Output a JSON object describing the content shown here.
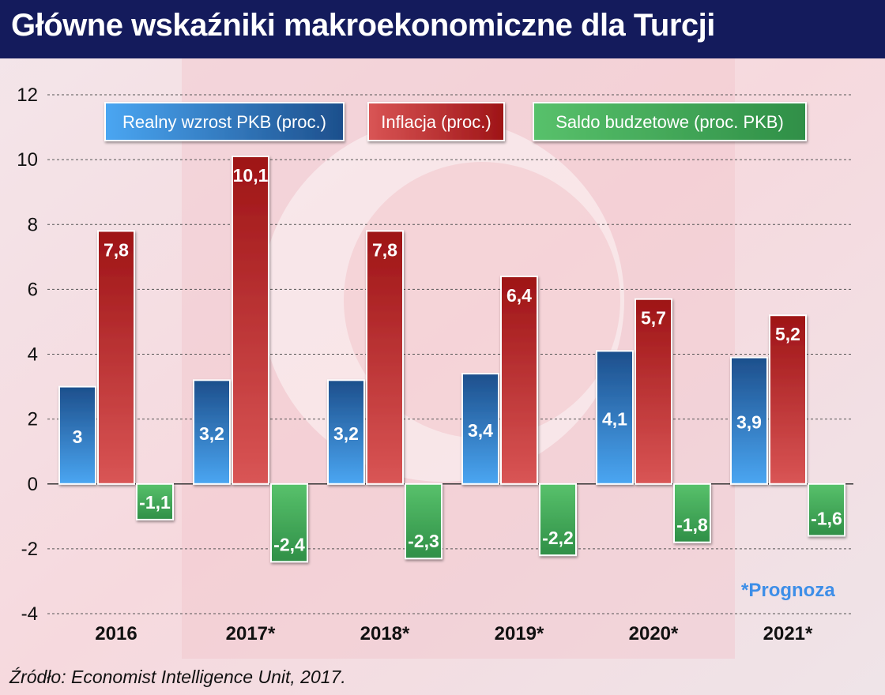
{
  "header": {
    "title": "Główne wskaźniki makroekonomiczne dla Turcji"
  },
  "footer": {
    "source": "Źródło: Economist Intelligence Unit, 2017."
  },
  "note": {
    "forecast": "*Prognoza"
  },
  "legend": [
    {
      "label": "Realny wzrost PKB (proc.)"
    },
    {
      "label": "Inflacja (proc.)"
    },
    {
      "label": "Saldo budzetowe (proc. PKB)"
    }
  ],
  "colors": {
    "header_bg": "#141b5c",
    "gdp": "#2f6db4",
    "inflation": "#b8252a",
    "budget": "#3aa655",
    "forecast_note": "#3d8ee8"
  },
  "chart_data": {
    "type": "bar",
    "categories": [
      "2016",
      "2017*",
      "2018*",
      "2019*",
      "2020*",
      "2021*"
    ],
    "series": [
      {
        "name": "Realny wzrost PKB (proc.)",
        "values": [
          3,
          3.2,
          3.2,
          3.4,
          4.1,
          3.9
        ],
        "labels": [
          "3",
          "3,2",
          "3,2",
          "3,4",
          "4,1",
          "3,9"
        ]
      },
      {
        "name": "Inflacja (proc.)",
        "values": [
          7.8,
          10.1,
          7.8,
          6.4,
          5.7,
          5.2
        ],
        "labels": [
          "7,8",
          "10,1",
          "7,8",
          "6,4",
          "5,7",
          "5,2"
        ]
      },
      {
        "name": "Saldo budzetowe (proc. PKB)",
        "values": [
          -1.1,
          -2.4,
          -2.3,
          -2.2,
          -1.8,
          -1.6
        ],
        "labels": [
          "-1,1",
          "-2,4",
          "-2,3",
          "-2,2",
          "-1,8",
          "-1,6"
        ]
      }
    ],
    "ylim": [
      -4,
      12
    ],
    "yticks": [
      -4,
      -2,
      0,
      2,
      4,
      6,
      8,
      10,
      12
    ],
    "ytick_labels": [
      "-4",
      "-2",
      "0",
      "2",
      "4",
      "6",
      "8",
      "10",
      "12"
    ],
    "grid": true,
    "legend_position": "top"
  }
}
